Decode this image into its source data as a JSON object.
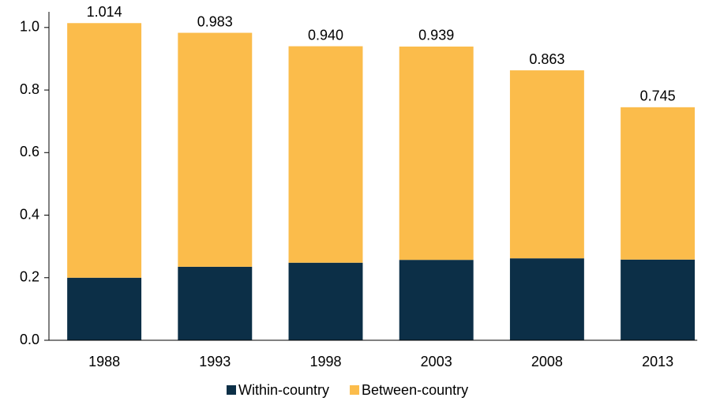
{
  "chart_data": {
    "type": "stacked_bar",
    "categories": [
      "1988",
      "1993",
      "1998",
      "2003",
      "2008",
      "2013"
    ],
    "series": [
      {
        "name": "Within-country",
        "color": "#0c2f47",
        "values": [
          0.2,
          0.235,
          0.248,
          0.257,
          0.262,
          0.258
        ]
      },
      {
        "name": "Between-country",
        "color": "#fbbc4b",
        "values": [
          0.814,
          0.748,
          0.692,
          0.682,
          0.601,
          0.487
        ]
      }
    ],
    "totals": [
      1.014,
      0.983,
      0.94,
      0.939,
      0.863,
      0.745
    ],
    "total_labels": [
      "1.014",
      "0.983",
      "0.940",
      "0.939",
      "0.863",
      "0.745"
    ],
    "ylim": [
      0,
      1.05
    ],
    "yticks": [
      {
        "value": 0,
        "label": "0.0"
      },
      {
        "value": 0.2,
        "label": "0.2"
      },
      {
        "value": 0.4,
        "label": "0.4"
      },
      {
        "value": 0.6,
        "label": "0.6"
      },
      {
        "value": 0.8,
        "label": "0.8"
      },
      {
        "value": 1,
        "label": "1.0"
      }
    ],
    "legend": "bottom"
  }
}
